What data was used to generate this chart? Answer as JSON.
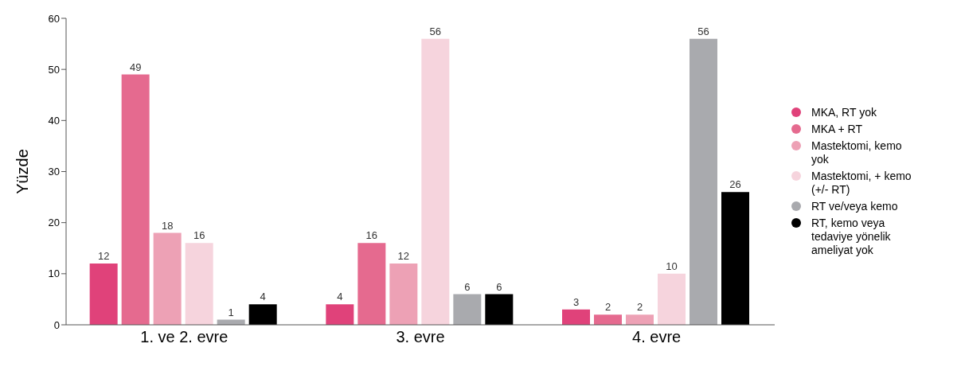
{
  "chart_data": {
    "type": "bar",
    "ylabel": "Yüzde",
    "categories": [
      "1. ve 2. evre",
      "3. evre",
      "4. evre"
    ],
    "series": [
      {
        "name": "MKA, RT yok",
        "color": "#e0427a",
        "values": [
          12,
          4,
          3
        ]
      },
      {
        "name": "MKA + RT",
        "color": "#e56a8f",
        "values": [
          49,
          16,
          2
        ]
      },
      {
        "name": "Mastektomi, kemo yok",
        "color": "#eda1b5",
        "values": [
          18,
          12,
          2
        ]
      },
      {
        "name": "Mastektomi, + kemo (+/- RT)",
        "color": "#f6d4dd",
        "values": [
          16,
          56,
          10
        ]
      },
      {
        "name": "RT ve/veya kemo",
        "color": "#a9aaae",
        "values": [
          1,
          6,
          56
        ]
      },
      {
        "name": "RT, kemo veya tedaviye yönelik ameliyat yok",
        "color": "#000000",
        "values": [
          4,
          6,
          26
        ]
      }
    ],
    "ylim": [
      0,
      60
    ],
    "yticks": [
      0,
      10,
      20,
      30,
      40,
      50,
      60
    ],
    "grid": false,
    "legend": "right",
    "data_labels": true,
    "marker": "circle"
  }
}
